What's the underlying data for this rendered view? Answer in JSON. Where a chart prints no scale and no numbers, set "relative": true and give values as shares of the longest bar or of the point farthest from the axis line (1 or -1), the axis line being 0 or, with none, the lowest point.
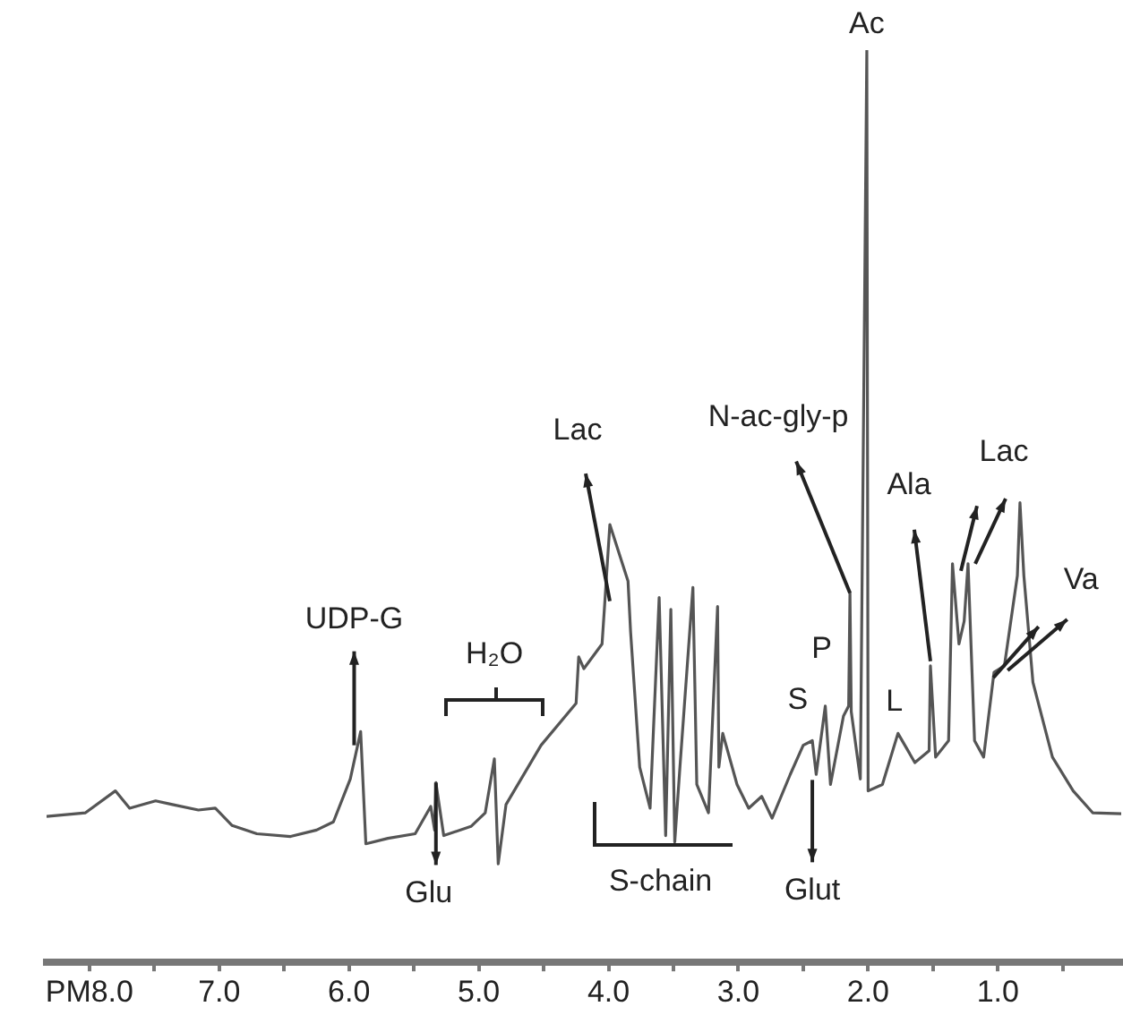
{
  "chart_data": {
    "type": "line",
    "relative": true,
    "legend": false,
    "grid": false,
    "marker": "none",
    "line_style": "solid",
    "xlim": [
      8.33,
      0.05
    ],
    "xticks": [
      {
        "value": 8,
        "label": "PM8.0"
      },
      {
        "value": 7.5,
        "label": null
      },
      {
        "value": 7,
        "label": "7.0"
      },
      {
        "value": 6.5,
        "label": null
      },
      {
        "value": 6,
        "label": "6.0"
      },
      {
        "value": 5.5,
        "label": null
      },
      {
        "value": 5,
        "label": "5.0"
      },
      {
        "value": 4.5,
        "label": null
      },
      {
        "value": 4,
        "label": "4.0"
      },
      {
        "value": 3.5,
        "label": null
      },
      {
        "value": 3,
        "label": "3.0"
      },
      {
        "value": 2.5,
        "label": null
      },
      {
        "value": 2,
        "label": "2.0"
      },
      {
        "value": 1.5,
        "label": null
      },
      {
        "value": 1,
        "label": "1.0"
      },
      {
        "value": 0.5,
        "label": null
      }
    ],
    "series": [
      {
        "color": "#555555",
        "x": [
          8.33,
          8.03,
          7.8,
          7.69,
          7.49,
          7.36,
          7.16,
          7.03,
          6.9,
          6.71,
          6.45,
          6.25,
          6.12,
          5.99,
          5.91,
          5.87,
          5.7,
          5.49,
          5.37,
          5.34,
          5.33,
          5.27,
          5.06,
          4.95,
          4.88,
          4.85,
          4.79,
          4.52,
          4.25,
          4.23,
          4.19,
          4.05,
          4.03,
          3.99,
          3.85,
          3.83,
          3.76,
          3.68,
          3.61,
          3.56,
          3.52,
          3.49,
          3.45,
          3.35,
          3.32,
          3.23,
          3.16,
          3.15,
          3.12,
          3.01,
          2.92,
          2.82,
          2.74,
          2.6,
          2.5,
          2.43,
          2.4,
          2.33,
          2.29,
          2.19,
          2.15,
          2.14,
          2.13,
          2.06,
          2.01,
          2.0,
          1.89,
          1.77,
          1.64,
          1.53,
          1.52,
          1.48,
          1.38,
          1.35,
          1.3,
          1.26,
          1.23,
          1.18,
          1.11,
          1.03,
          0.95,
          0.85,
          0.83,
          0.8,
          0.73,
          0.58,
          0.42,
          0.27,
          0.05
        ],
        "values": [
          0.16,
          0.164,
          0.188,
          0.169,
          0.177,
          0.173,
          0.167,
          0.169,
          0.15,
          0.141,
          0.138,
          0.145,
          0.154,
          0.201,
          0.253,
          0.13,
          0.136,
          0.141,
          0.171,
          0.145,
          0.197,
          0.139,
          0.149,
          0.164,
          0.223,
          0.108,
          0.173,
          0.238,
          0.284,
          0.335,
          0.322,
          0.349,
          0.392,
          0.48,
          0.418,
          0.362,
          0.214,
          0.169,
          0.4,
          0.139,
          0.387,
          0.132,
          0.214,
          0.411,
          0.195,
          0.164,
          0.39,
          0.214,
          0.251,
          0.195,
          0.169,
          0.182,
          0.158,
          0.206,
          0.238,
          0.243,
          0.206,
          0.281,
          0.195,
          0.27,
          0.281,
          0.405,
          0.275,
          0.201,
          1,
          0.188,
          0.195,
          0.251,
          0.219,
          0.232,
          0.325,
          0.225,
          0.243,
          0.437,
          0.349,
          0.374,
          0.437,
          0.243,
          0.225,
          0.318,
          0.325,
          0.424,
          0.504,
          0.424,
          0.307,
          0.225,
          0.188,
          0.164,
          0.163
        ]
      }
    ],
    "annotations": [
      {
        "text": "UDP-G",
        "x": 5.96,
        "y": 0.238
      },
      {
        "text": "H₂O",
        "x": 4.88,
        "y": 0.223
      },
      {
        "text": "Glu",
        "x": 5.33,
        "y": 0.197
      },
      {
        "text": "Lac",
        "x": 3.99,
        "y": 0.396
      },
      {
        "text": "S-chain",
        "x": 3.6,
        "y": 0.17
      },
      {
        "text": "N-ac-gly-p",
        "x": 2.14,
        "y": 0.405
      },
      {
        "text": "Ac",
        "x": 2.01,
        "y": 1
      },
      {
        "text": "Ala",
        "x": 1.52,
        "y": 0.33
      },
      {
        "text": "Lac",
        "x": 1.23,
        "y": 0.437
      },
      {
        "text": "S",
        "x": 2.5,
        "y": 0.24
      },
      {
        "text": "P",
        "x": 2.33,
        "y": 0.28
      },
      {
        "text": "L",
        "x": 1.77,
        "y": 0.25
      },
      {
        "text": "Glut",
        "x": 2.43,
        "y": 0.2
      },
      {
        "text": "Va",
        "x": 0.98,
        "y": 0.32
      }
    ]
  }
}
